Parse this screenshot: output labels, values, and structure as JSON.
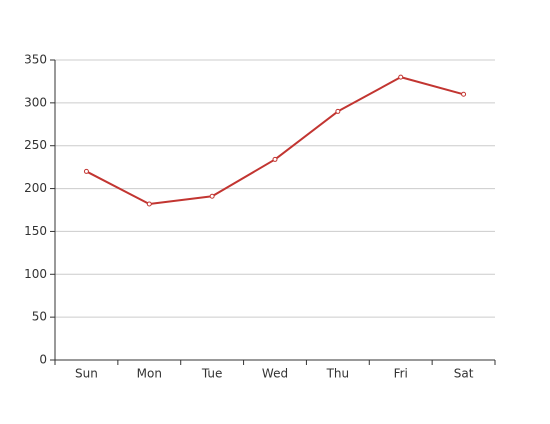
{
  "chart_data": {
    "type": "line",
    "categories": [
      "Sun",
      "Mon",
      "Tue",
      "Wed",
      "Thu",
      "Fri",
      "Sat"
    ],
    "series": [
      {
        "color": "#c23531",
        "values": [
          220,
          182,
          191,
          234,
          290,
          330,
          310
        ]
      }
    ],
    "ylim": [
      0,
      350
    ],
    "yticks": [
      0,
      50,
      100,
      150,
      200,
      250,
      300,
      350
    ],
    "grid": true
  }
}
